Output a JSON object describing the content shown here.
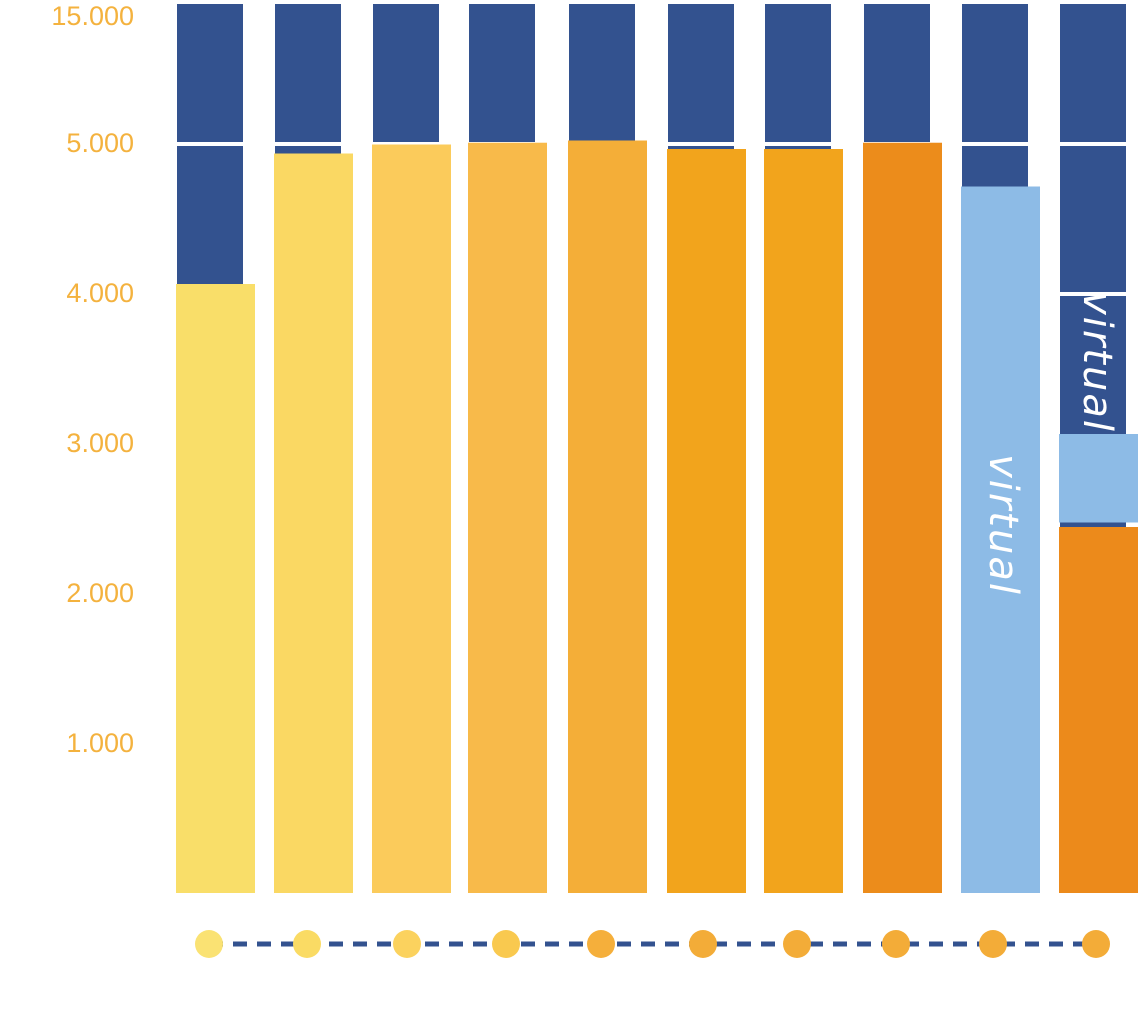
{
  "chart_data": {
    "type": "bar",
    "title": "",
    "xlabel": "",
    "ylabel": "",
    "scale": "piecewise (1.000 per band up to 5.000, then 5.000–15.000 in top band)",
    "ylim": [
      0,
      15000
    ],
    "y_ticks": [
      "1.000",
      "2.000",
      "3.000",
      "4.000",
      "5.000",
      "15.000"
    ],
    "y_tick_values": [
      1000,
      2000,
      3000,
      4000,
      5000,
      15000
    ],
    "categories": [
      "",
      "",
      "",
      "",
      "",
      "",
      "",
      "",
      "",
      ""
    ],
    "values": [
      4060,
      4930,
      4990,
      5020,
      5180,
      4960,
      4960,
      5020,
      4710,
      2440
    ],
    "stacked_top": {
      "index": 9,
      "base": 2470,
      "value": 3060,
      "label": "virtual"
    },
    "bar_labels": [
      {
        "index": 8,
        "text": "virtual"
      }
    ],
    "bar_colors": [
      "#F9DE69",
      "#FAD863",
      "#FBCB5B",
      "#F8BA4A",
      "#F4AE38",
      "#F2A41C",
      "#F2A41C",
      "#EC8C1B",
      "#8DBBE6",
      "#EC8A1B"
    ],
    "marker_colors": [
      "#FAE273",
      "#FADB64",
      "#FBD25E",
      "#F9C94F",
      "#F5AF3B",
      "#F3AC38",
      "#F3AC38",
      "#F3AC38",
      "#F3AC38",
      "#F3AC38"
    ],
    "grid": true,
    "legend": "none"
  },
  "colors": {
    "background_band": "#33528F",
    "tick_label": "#F4B23E",
    "bar_label": "#FFFFFF",
    "connector": "#33528F"
  }
}
